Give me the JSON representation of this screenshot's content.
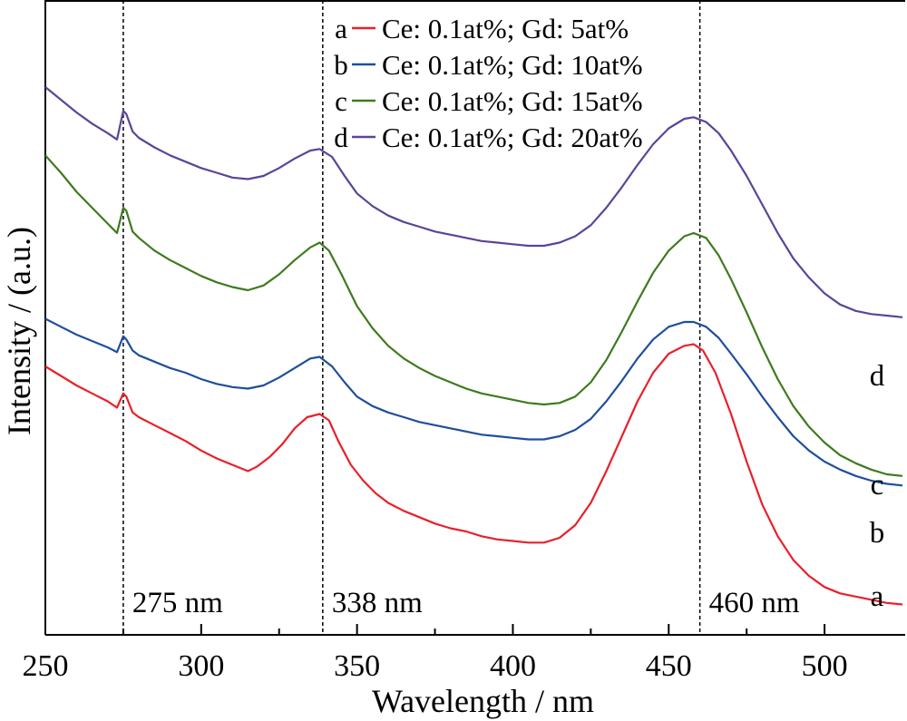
{
  "chart_data": {
    "type": "line",
    "title": "",
    "xlabel": "Wavelength / nm",
    "ylabel": "Intensity / (a.u.)",
    "xlim": [
      250,
      525
    ],
    "ylim": [
      0,
      4.0
    ],
    "y_ticks_shown": false,
    "x_ticks": [
      250,
      300,
      350,
      400,
      450,
      500
    ],
    "grid": false,
    "legend_position": "top-center",
    "reference_lines": [
      {
        "x": 275,
        "label": "275 nm",
        "style": "dashed"
      },
      {
        "x": 339,
        "label": "338 nm",
        "style": "dashed"
      },
      {
        "x": 460,
        "label": "460 nm",
        "style": "dashed"
      }
    ],
    "series": [
      {
        "name": "Ce: 0.1at%; Gd: 5at%",
        "letter": "a",
        "color": "#e8202a",
        "x": [
          250,
          255,
          260,
          265,
          270,
          273,
          275,
          276,
          278,
          280,
          285,
          290,
          295,
          300,
          305,
          310,
          315,
          318,
          322,
          326,
          330,
          334,
          338,
          341,
          344,
          348,
          352,
          356,
          360,
          365,
          370,
          375,
          380,
          385,
          390,
          395,
          400,
          405,
          410,
          415,
          420,
          425,
          430,
          435,
          440,
          445,
          450,
          455,
          458,
          461,
          465,
          470,
          475,
          480,
          485,
          490,
          495,
          500,
          505,
          510,
          515,
          520,
          525
        ],
        "y": [
          1.52,
          1.46,
          1.4,
          1.35,
          1.3,
          1.26,
          1.35,
          1.33,
          1.23,
          1.2,
          1.15,
          1.1,
          1.05,
          0.99,
          0.94,
          0.9,
          0.86,
          0.89,
          0.95,
          1.03,
          1.13,
          1.2,
          1.22,
          1.18,
          1.05,
          0.9,
          0.8,
          0.72,
          0.66,
          0.61,
          0.57,
          0.53,
          0.5,
          0.48,
          0.45,
          0.43,
          0.42,
          0.41,
          0.41,
          0.44,
          0.52,
          0.66,
          0.86,
          1.08,
          1.3,
          1.48,
          1.6,
          1.65,
          1.66,
          1.62,
          1.48,
          1.22,
          0.92,
          0.65,
          0.45,
          0.3,
          0.2,
          0.13,
          0.09,
          0.07,
          0.05,
          0.03,
          0.02
        ]
      },
      {
        "name": "Ce: 0.1at%; Gd: 10at%",
        "letter": "b",
        "color": "#1f4e9d",
        "x": [
          250,
          255,
          260,
          265,
          270,
          273,
          275,
          276,
          278,
          280,
          285,
          290,
          295,
          300,
          305,
          310,
          315,
          320,
          325,
          330,
          335,
          338,
          342,
          346,
          350,
          355,
          360,
          365,
          370,
          375,
          380,
          385,
          390,
          395,
          400,
          405,
          410,
          415,
          420,
          425,
          430,
          435,
          440,
          445,
          450,
          455,
          458,
          462,
          466,
          470,
          475,
          480,
          485,
          490,
          495,
          500,
          505,
          510,
          515,
          520,
          525
        ],
        "y": [
          1.82,
          1.77,
          1.72,
          1.68,
          1.64,
          1.61,
          1.71,
          1.69,
          1.62,
          1.59,
          1.55,
          1.51,
          1.48,
          1.44,
          1.41,
          1.39,
          1.38,
          1.4,
          1.45,
          1.51,
          1.57,
          1.58,
          1.52,
          1.42,
          1.33,
          1.27,
          1.23,
          1.2,
          1.17,
          1.15,
          1.13,
          1.11,
          1.09,
          1.08,
          1.07,
          1.06,
          1.06,
          1.08,
          1.12,
          1.19,
          1.3,
          1.43,
          1.57,
          1.69,
          1.77,
          1.8,
          1.8,
          1.77,
          1.7,
          1.6,
          1.47,
          1.33,
          1.2,
          1.08,
          0.99,
          0.92,
          0.87,
          0.83,
          0.8,
          0.78,
          0.77
        ]
      },
      {
        "name": "Ce: 0.1at%; Gd: 15at%",
        "letter": "c",
        "color": "#3f7a1f",
        "x": [
          250,
          255,
          260,
          265,
          270,
          273,
          275,
          276,
          278,
          280,
          285,
          290,
          295,
          300,
          305,
          310,
          315,
          320,
          325,
          330,
          335,
          338,
          341,
          345,
          350,
          355,
          360,
          365,
          370,
          375,
          380,
          385,
          390,
          395,
          400,
          405,
          410,
          415,
          420,
          425,
          430,
          435,
          440,
          445,
          450,
          455,
          458,
          462,
          466,
          470,
          475,
          480,
          485,
          490,
          495,
          500,
          505,
          510,
          515,
          520,
          525
        ],
        "y": [
          2.85,
          2.74,
          2.62,
          2.52,
          2.42,
          2.36,
          2.52,
          2.5,
          2.37,
          2.33,
          2.25,
          2.19,
          2.14,
          2.09,
          2.05,
          2.02,
          2.0,
          2.03,
          2.1,
          2.19,
          2.27,
          2.3,
          2.25,
          2.1,
          1.9,
          1.76,
          1.65,
          1.57,
          1.51,
          1.46,
          1.42,
          1.38,
          1.35,
          1.33,
          1.31,
          1.29,
          1.28,
          1.29,
          1.33,
          1.42,
          1.56,
          1.74,
          1.93,
          2.11,
          2.25,
          2.34,
          2.36,
          2.33,
          2.22,
          2.07,
          1.86,
          1.64,
          1.44,
          1.27,
          1.14,
          1.04,
          0.96,
          0.91,
          0.87,
          0.84,
          0.83
        ]
      },
      {
        "name": "Ce: 0.1at%; Gd: 20at%",
        "letter": "d",
        "color": "#5b449a",
        "x": [
          250,
          255,
          260,
          265,
          270,
          273,
          275,
          276,
          278,
          280,
          285,
          290,
          295,
          300,
          305,
          310,
          315,
          320,
          325,
          330,
          335,
          338,
          342,
          346,
          350,
          355,
          360,
          365,
          370,
          375,
          380,
          385,
          390,
          395,
          400,
          405,
          410,
          415,
          420,
          425,
          430,
          435,
          440,
          445,
          450,
          455,
          458,
          462,
          466,
          470,
          475,
          480,
          485,
          490,
          495,
          500,
          505,
          510,
          515,
          520,
          525
        ],
        "y": [
          3.28,
          3.2,
          3.12,
          3.05,
          2.99,
          2.95,
          3.13,
          3.11,
          3.0,
          2.96,
          2.9,
          2.85,
          2.81,
          2.77,
          2.74,
          2.71,
          2.7,
          2.72,
          2.77,
          2.83,
          2.88,
          2.89,
          2.84,
          2.72,
          2.61,
          2.53,
          2.47,
          2.43,
          2.4,
          2.37,
          2.35,
          2.33,
          2.31,
          2.3,
          2.29,
          2.28,
          2.28,
          2.3,
          2.34,
          2.41,
          2.52,
          2.65,
          2.79,
          2.92,
          3.02,
          3.08,
          3.09,
          3.06,
          2.99,
          2.88,
          2.72,
          2.54,
          2.36,
          2.2,
          2.08,
          1.98,
          1.91,
          1.87,
          1.85,
          1.84,
          1.83
        ]
      }
    ]
  }
}
